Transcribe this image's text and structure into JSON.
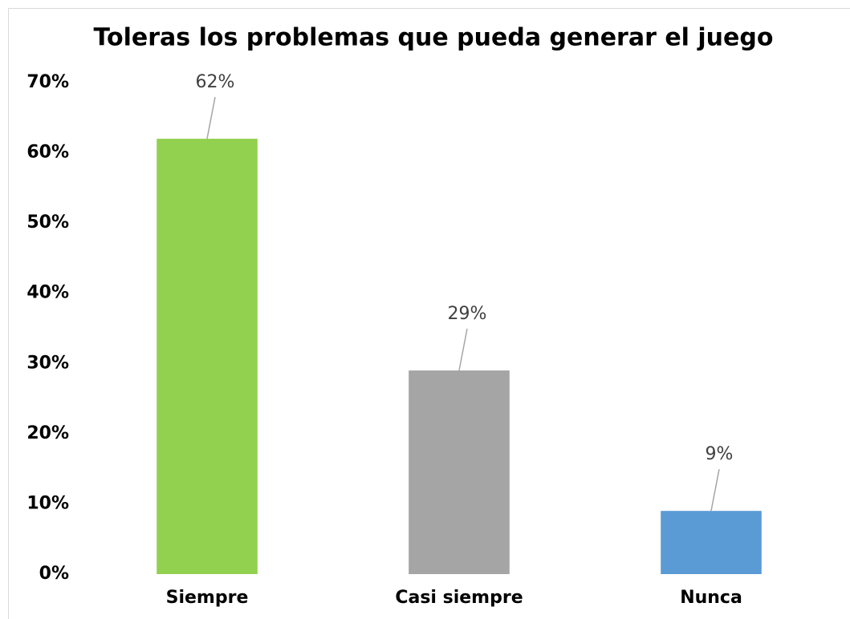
{
  "chart_data": {
    "type": "bar",
    "title": "Toleras los problemas que pueda generar el juego",
    "categories": [
      "Siempre",
      "Casi siempre",
      "Nunca"
    ],
    "values": [
      62,
      29,
      9
    ],
    "value_labels": [
      "62%",
      "29%",
      "9%"
    ],
    "colors": [
      "#92d050",
      "#a5a5a5",
      "#5b9bd5"
    ],
    "ylim": [
      0,
      70
    ],
    "yticks": [
      {
        "value": 0,
        "label": "0%"
      },
      {
        "value": 10,
        "label": "10%"
      },
      {
        "value": 20,
        "label": "20%"
      },
      {
        "value": 30,
        "label": "30%"
      },
      {
        "value": 40,
        "label": "40%"
      },
      {
        "value": 50,
        "label": "50%"
      },
      {
        "value": 60,
        "label": "60%"
      },
      {
        "value": 70,
        "label": "70%"
      }
    ],
    "grid": false
  }
}
